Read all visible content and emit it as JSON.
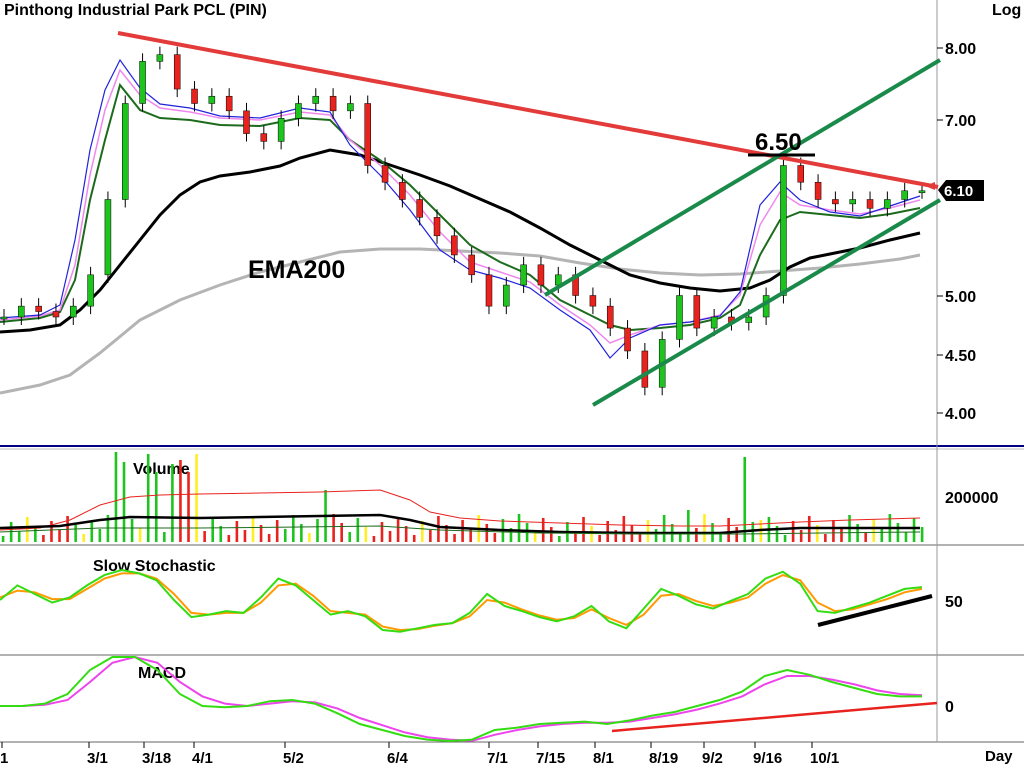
{
  "chart_data": {
    "type": "line",
    "title": "Pinthong  Industrial  Park  PCL  (PIN)",
    "scale_label": "Log",
    "period_label": "Day",
    "colors": {
      "price_up": "#1ec41e",
      "price_down": "#e8231e",
      "ema_fast": "#2222dd",
      "ema_mid": "#ee88ee",
      "ema_slow": "#1c6b1c",
      "ema_long": "#000000",
      "ema200": "#b4b4b4",
      "trendline": "#e33a3a",
      "channel": "#1a8a4a",
      "stoch_k": "#33dd11",
      "stoch_d": "#ff9900",
      "macd": "#33dd11",
      "signal": "#ee44ee",
      "divergence_stoch": "#000000",
      "divergence_macd": "#e8231e"
    },
    "x_ticks": [
      "1",
      "3/1",
      "3/18",
      "4/1",
      "5/2",
      "6/4",
      "7/1",
      "7/15",
      "8/1",
      "8/19",
      "9/2",
      "9/16",
      "10/1"
    ],
    "price_axis": {
      "ticks": [
        4.0,
        4.5,
        5.0,
        7.0,
        8.0
      ],
      "tick_labels": [
        "4.00",
        "4.50",
        "5.00",
        "7.00",
        "8.00"
      ],
      "scale": "log"
    },
    "annotations": {
      "ema200_label": "EMA200",
      "resistance_label": "6.50",
      "last_price_label": "6.10"
    },
    "price": {
      "last": 6.1,
      "resistance": 6.5,
      "series": [
        {
          "name": "Close",
          "values": [
            4.8,
            4.9,
            4.85,
            4.8,
            4.9,
            5.2,
            6.0,
            7.2,
            7.8,
            7.9,
            7.4,
            7.2,
            7.3,
            7.1,
            6.8,
            6.7,
            7.0,
            7.2,
            7.3,
            7.1,
            7.2,
            6.4,
            6.2,
            6.0,
            5.8,
            5.6,
            5.4,
            5.2,
            4.9,
            5.1,
            5.3,
            5.1,
            5.2,
            5.0,
            4.9,
            4.7,
            4.5,
            4.2,
            4.6,
            5.0,
            4.7,
            4.8,
            4.75,
            4.8,
            5.0,
            6.4,
            6.2,
            6.0,
            5.95,
            6.0,
            5.9,
            6.0,
            6.1,
            6.1
          ]
        },
        {
          "name": "EMA200",
          "values": [
            4.15,
            4.2,
            4.25,
            4.35,
            4.45,
            4.55,
            4.65,
            4.75,
            4.85,
            4.95,
            5.05,
            5.15,
            5.22,
            5.3,
            5.38,
            5.43,
            5.48,
            5.52,
            5.55,
            5.58,
            5.6,
            5.6,
            5.6,
            5.6,
            5.59,
            5.58,
            5.57,
            5.56,
            5.54,
            5.53,
            5.52,
            5.51,
            5.5,
            5.48,
            5.46,
            5.44,
            5.42,
            5.4,
            5.38,
            5.37,
            5.36,
            5.35,
            5.35,
            5.35,
            5.36,
            5.4,
            5.44,
            5.48,
            5.52,
            5.55,
            5.58,
            5.6,
            5.62,
            5.64
          ]
        }
      ]
    },
    "volume": {
      "label": "Volume",
      "axis_label": "200000"
    },
    "stochastic": {
      "label": "Slow  Stochastic",
      "axis_label": "50",
      "series": [
        {
          "name": "%K",
          "values": [
            55,
            72,
            62,
            52,
            58,
            72,
            84,
            90,
            86,
            78,
            55,
            35,
            38,
            42,
            40,
            58,
            80,
            72,
            55,
            38,
            42,
            36,
            20,
            18,
            22,
            26,
            28,
            40,
            62,
            48,
            42,
            35,
            30,
            36,
            48,
            30,
            22,
            45,
            68,
            60,
            50,
            45,
            54,
            62,
            80,
            88,
            74,
            42,
            40,
            46,
            52,
            60,
            68,
            70
          ]
        },
        {
          "name": "%D",
          "values": [
            58,
            66,
            64,
            56,
            56,
            68,
            80,
            86,
            86,
            80,
            62,
            40,
            38,
            40,
            40,
            52,
            72,
            74,
            60,
            42,
            40,
            38,
            24,
            20,
            21,
            25,
            28,
            36,
            55,
            52,
            44,
            37,
            32,
            34,
            44,
            34,
            26,
            38,
            60,
            62,
            54,
            48,
            52,
            58,
            74,
            84,
            78,
            52,
            42,
            44,
            50,
            56,
            64,
            68
          ]
        }
      ]
    },
    "macd": {
      "label": "MACD",
      "axis_label": "0",
      "series": [
        {
          "name": "MACD",
          "values": [
            0.0,
            0.0,
            0.02,
            0.1,
            0.3,
            0.45,
            0.42,
            0.3,
            0.1,
            0.0,
            -0.01,
            0.0,
            0.04,
            0.05,
            0.02,
            -0.06,
            -0.15,
            -0.2,
            -0.25,
            -0.28,
            -0.3,
            -0.28,
            -0.2,
            -0.18,
            -0.15,
            -0.14,
            -0.13,
            -0.15,
            -0.12,
            -0.08,
            -0.05,
            0.0,
            0.05,
            0.12,
            0.25,
            0.3,
            0.26,
            0.2,
            0.15,
            0.1,
            0.08,
            0.08
          ]
        },
        {
          "name": "Signal",
          "values": [
            0.0,
            0.0,
            0.01,
            0.05,
            0.2,
            0.36,
            0.42,
            0.36,
            0.2,
            0.08,
            0.02,
            0.0,
            0.02,
            0.04,
            0.03,
            -0.02,
            -0.1,
            -0.16,
            -0.22,
            -0.26,
            -0.28,
            -0.29,
            -0.24,
            -0.2,
            -0.17,
            -0.15,
            -0.14,
            -0.14,
            -0.13,
            -0.1,
            -0.07,
            -0.03,
            0.02,
            0.08,
            0.18,
            0.25,
            0.25,
            0.22,
            0.18,
            0.13,
            0.1,
            0.09
          ]
        }
      ]
    }
  }
}
